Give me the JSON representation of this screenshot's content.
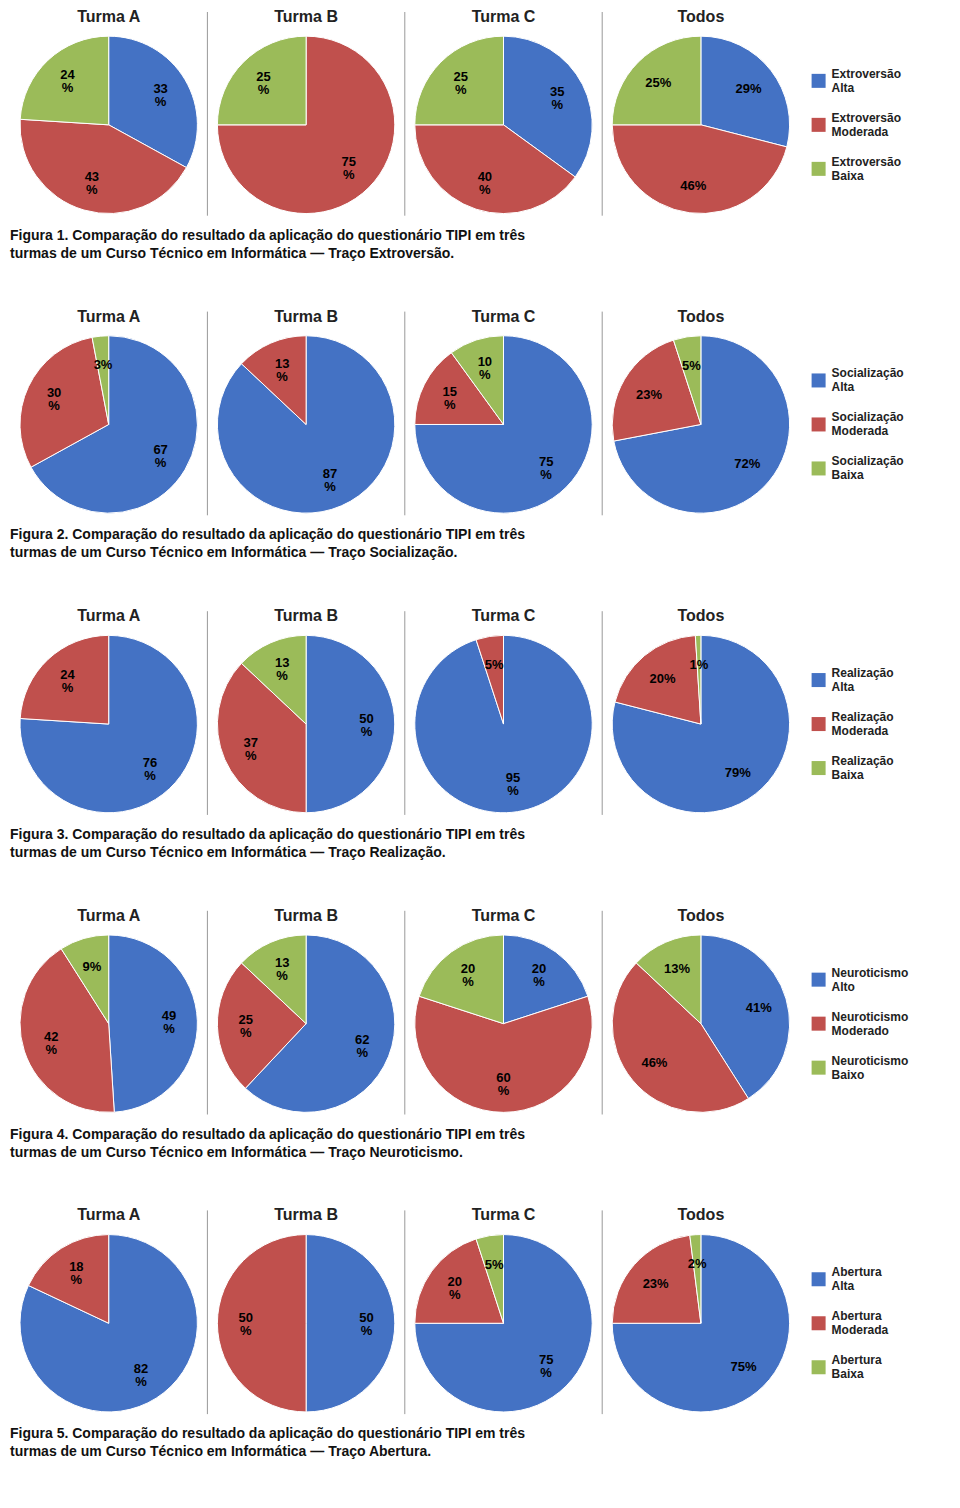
{
  "chart_data": [
    {
      "type": "pie",
      "title": "Figura 1. Comparação do resultado da aplicação do questionário TIPI em três\nturmas de um Curso Técnico em Informática — Traço Extroversão.",
      "categories": [
        "Extroversão\nAlta",
        "Extroversão\nModerada",
        "Extroversão\nBaixa"
      ],
      "colors": [
        "#4472C4",
        "#C0504D",
        "#9BBB59"
      ],
      "legend": "right",
      "data_labels": true,
      "series": [
        {
          "name": "Turma A",
          "values": [
            33,
            43,
            24
          ],
          "value_labels": [
            "33\n%",
            "43\n%",
            "24\n%"
          ]
        },
        {
          "name": "Turma B",
          "values": [
            0,
            75,
            25
          ],
          "value_labels": [
            null,
            "75\n%",
            "25\n%"
          ]
        },
        {
          "name": "Turma C",
          "values": [
            35,
            40,
            25
          ],
          "value_labels": [
            "35\n%",
            "40\n%",
            "25\n%"
          ]
        },
        {
          "name": "Todos",
          "values": [
            29,
            46,
            25
          ],
          "value_labels": [
            "29%",
            "46%",
            "25%"
          ]
        }
      ]
    },
    {
      "type": "pie",
      "title": "Figura 2. Comparação do resultado da aplicação do questionário TIPI em três\nturmas de um Curso Técnico em Informática — Traço Socialização.",
      "categories": [
        "Socialização\nAlta",
        "Socialização\nModerada",
        "Socialização\nBaixa"
      ],
      "colors": [
        "#4472C4",
        "#C0504D",
        "#9BBB59"
      ],
      "legend": "right",
      "data_labels": true,
      "series": [
        {
          "name": "Turma A",
          "values": [
            67,
            30,
            3
          ],
          "value_labels": [
            "67\n%",
            "30\n%",
            "3%"
          ]
        },
        {
          "name": "Turma B",
          "values": [
            87,
            13,
            0
          ],
          "value_labels": [
            "87\n%",
            "13\n%",
            null
          ]
        },
        {
          "name": "Turma C",
          "values": [
            75,
            15,
            10
          ],
          "value_labels": [
            "75\n%",
            "15\n%",
            "10\n%"
          ]
        },
        {
          "name": "Todos",
          "values": [
            72,
            23,
            5
          ],
          "value_labels": [
            "72%",
            "23%",
            "5%"
          ]
        }
      ]
    },
    {
      "type": "pie",
      "title": "Figura 3. Comparação do resultado da aplicação do questionário TIPI em três\nturmas de um Curso Técnico em Informática — Traço Realização.",
      "categories": [
        "Realização\nAlta",
        "Realização\nModerada",
        "Realização\nBaixa"
      ],
      "colors": [
        "#4472C4",
        "#C0504D",
        "#9BBB59"
      ],
      "legend": "right",
      "data_labels": true,
      "series": [
        {
          "name": "Turma A",
          "values": [
            76,
            24,
            0
          ],
          "value_labels": [
            "76\n%",
            "24\n%",
            null
          ]
        },
        {
          "name": "Turma B",
          "values": [
            50,
            37,
            13
          ],
          "value_labels": [
            "50\n%",
            "37\n%",
            "13\n%"
          ]
        },
        {
          "name": "Turma C",
          "values": [
            95,
            5,
            0
          ],
          "value_labels": [
            "95\n%",
            "5%",
            null
          ]
        },
        {
          "name": "Todos",
          "values": [
            79,
            20,
            1
          ],
          "value_labels": [
            "79%",
            "20%",
            "1%"
          ]
        }
      ]
    },
    {
      "type": "pie",
      "title": "Figura 4. Comparação do resultado da aplicação do questionário TIPI em três\nturmas de um Curso Técnico em Informática — Traço Neuroticismo.",
      "categories": [
        "Neuroticismo\nAlto",
        "Neuroticismo\nModerado",
        "Neuroticismo\nBaixo"
      ],
      "colors": [
        "#4472C4",
        "#C0504D",
        "#9BBB59"
      ],
      "legend": "right",
      "data_labels": true,
      "series": [
        {
          "name": "Turma A",
          "values": [
            49,
            42,
            9
          ],
          "value_labels": [
            "49\n%",
            "42\n%",
            "9%"
          ]
        },
        {
          "name": "Turma B",
          "values": [
            62,
            25,
            13
          ],
          "value_labels": [
            "62\n%",
            "25\n%",
            "13\n%"
          ]
        },
        {
          "name": "Turma C",
          "values": [
            20,
            60,
            20
          ],
          "value_labels": [
            "20\n%",
            "60\n%",
            "20\n%"
          ]
        },
        {
          "name": "Todos",
          "values": [
            41,
            46,
            13
          ],
          "value_labels": [
            "41%",
            "46%",
            "13%"
          ]
        }
      ]
    },
    {
      "type": "pie",
      "title": "Figura 5. Comparação do resultado da aplicação do questionário TIPI em três\nturmas de um Curso Técnico em Informática — Traço Abertura.",
      "categories": [
        "Abertura\nAlta",
        "Abertura\nModerada",
        "Abertura\nBaixa"
      ],
      "colors": [
        "#4472C4",
        "#C0504D",
        "#9BBB59"
      ],
      "legend": "right",
      "data_labels": true,
      "series": [
        {
          "name": "Turma A",
          "values": [
            82,
            18,
            0
          ],
          "value_labels": [
            "82\n%",
            "18\n%",
            null
          ]
        },
        {
          "name": "Turma B",
          "values": [
            50,
            50,
            0
          ],
          "value_labels": [
            "50\n%",
            "50\n%",
            null
          ]
        },
        {
          "name": "Turma C",
          "values": [
            75,
            20,
            5
          ],
          "value_labels": [
            "75\n%",
            "20\n%",
            "5%"
          ]
        },
        {
          "name": "Todos",
          "values": [
            75,
            23,
            2
          ],
          "value_labels": [
            "75%",
            "23%",
            "2%"
          ]
        }
      ]
    }
  ]
}
